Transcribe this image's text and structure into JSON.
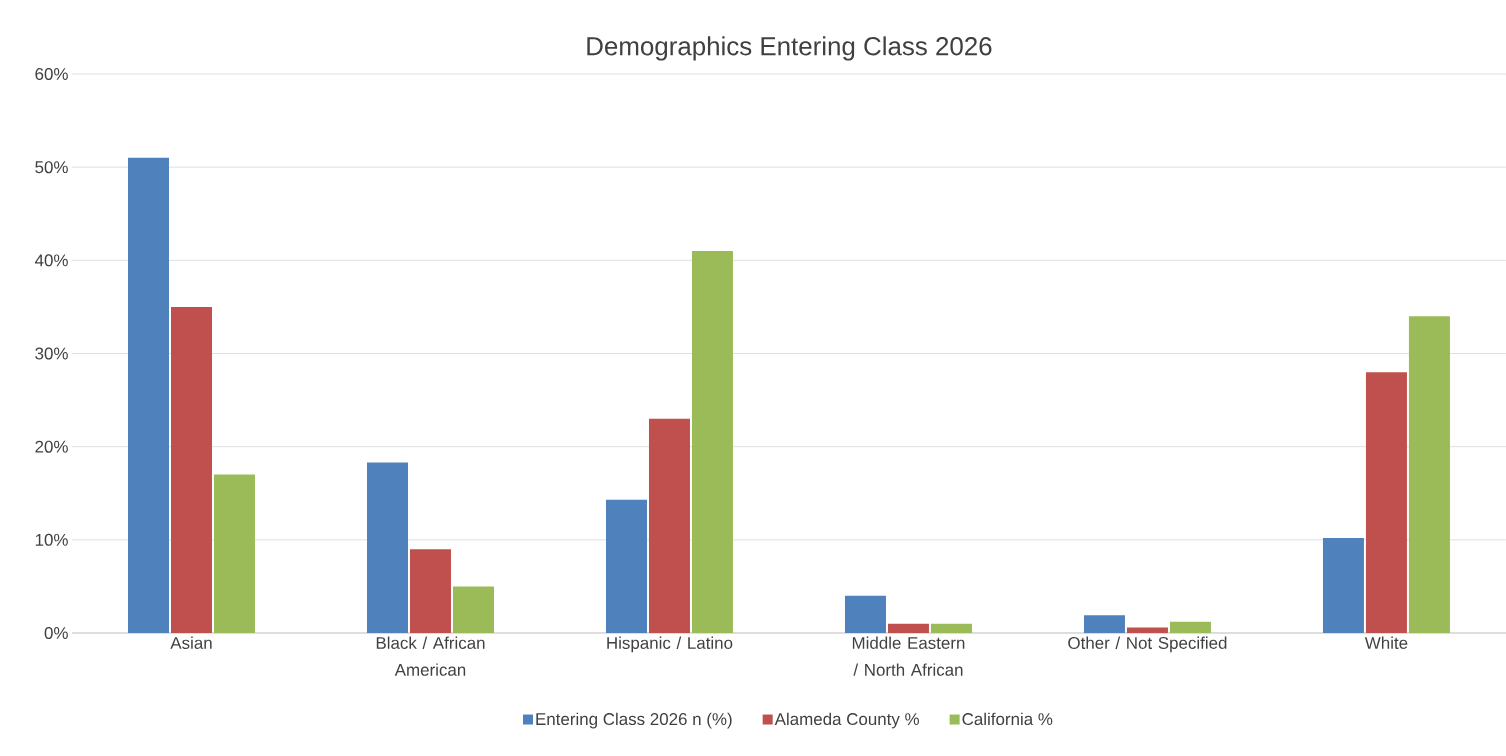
{
  "chart_data": {
    "type": "bar",
    "title": "Demographics Entering Class 2026",
    "categories": [
      "Asian",
      "Black / African American",
      "Hispanic / Latino",
      "Middle Eastern / North African",
      "Other / Not Specified",
      "White"
    ],
    "series": [
      {
        "name": "Entering Class 2026 n (%)",
        "color": "#4f81bd",
        "values": [
          51,
          18.3,
          14.3,
          4,
          1.9,
          10.2
        ]
      },
      {
        "name": "Alameda County %",
        "color": "#c0504d",
        "values": [
          35,
          9,
          23,
          1,
          0.6,
          28
        ]
      },
      {
        "name": "California %",
        "color": "#9bbb59",
        "values": [
          17,
          5,
          41,
          1,
          1.2,
          34
        ]
      }
    ],
    "ylim": [
      0,
      60
    ],
    "yticks": [
      {
        "value": 0,
        "label": "0%"
      },
      {
        "value": 10,
        "label": "10%"
      },
      {
        "value": 20,
        "label": "20%"
      },
      {
        "value": 30,
        "label": "30%"
      },
      {
        "value": 40,
        "label": "40%"
      },
      {
        "value": 50,
        "label": "50%"
      },
      {
        "value": 60,
        "label": "60%"
      }
    ],
    "grid": "y",
    "legend": "bottom"
  }
}
